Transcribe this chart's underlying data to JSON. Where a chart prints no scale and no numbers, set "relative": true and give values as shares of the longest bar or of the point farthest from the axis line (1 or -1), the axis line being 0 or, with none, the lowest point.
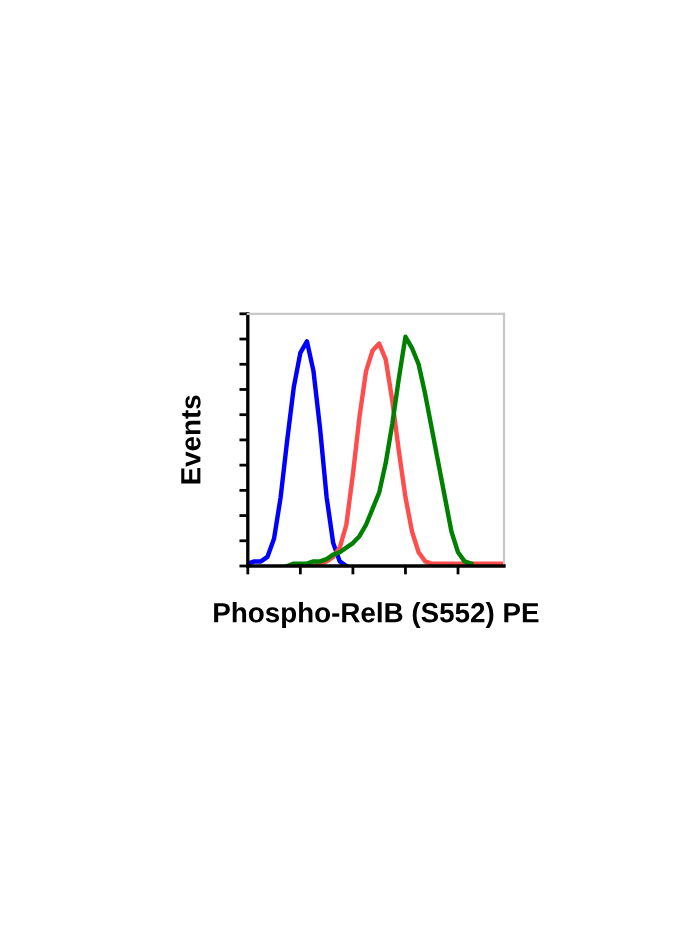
{
  "chart_data": {
    "type": "line",
    "relative": true,
    "xlabel": "Phospho-RelB (S552) PE",
    "ylabel": "Events",
    "tick_labels": false,
    "grid": false,
    "legend": false,
    "marker": "none",
    "line_style": "solid",
    "categories": [
      null,
      null,
      null,
      null,
      null,
      null,
      null,
      null,
      null,
      null,
      null,
      null,
      null,
      null,
      null,
      null,
      null,
      null,
      null,
      null,
      null,
      null,
      null,
      null,
      null,
      null,
      null,
      null,
      null,
      null,
      null,
      null,
      null,
      null,
      null,
      null,
      null,
      null,
      null,
      null
    ],
    "series": [
      {
        "color": "#0000ff",
        "values": [
          0.01,
          0.02,
          0.02,
          0.04,
          0.12,
          0.3,
          0.55,
          0.78,
          0.93,
          0.98,
          0.85,
          0.6,
          0.3,
          0.1,
          0.02,
          0,
          null,
          null,
          null,
          null,
          null,
          null,
          null,
          null,
          null,
          null,
          null,
          null,
          null,
          null,
          null,
          null,
          null,
          null,
          null,
          null,
          null,
          null,
          null,
          null
        ]
      },
      {
        "color": "#ff4d4d",
        "values": [
          null,
          null,
          null,
          null,
          null,
          null,
          null,
          null,
          null,
          0,
          0,
          0.01,
          0.02,
          0.04,
          0.08,
          0.18,
          0.4,
          0.65,
          0.85,
          0.94,
          0.97,
          0.9,
          0.72,
          0.5,
          0.3,
          0.15,
          0.06,
          0.02,
          0.01,
          0.01,
          0.01,
          0.01,
          0.01,
          0.01,
          0.01,
          0.01,
          0.01,
          0.01,
          0.01,
          0.01
        ]
      },
      {
        "color": "#008000",
        "values": [
          null,
          null,
          null,
          null,
          null,
          null,
          0,
          0.01,
          0.01,
          0.01,
          0.02,
          0.02,
          0.03,
          0.05,
          0.06,
          0.08,
          0.1,
          0.13,
          0.18,
          0.25,
          0.32,
          0.45,
          0.62,
          0.82,
          1.0,
          0.95,
          0.88,
          0.75,
          0.6,
          0.45,
          0.3,
          0.15,
          0.06,
          0.02,
          0.01,
          null,
          null,
          null,
          null,
          null
        ]
      }
    ]
  }
}
